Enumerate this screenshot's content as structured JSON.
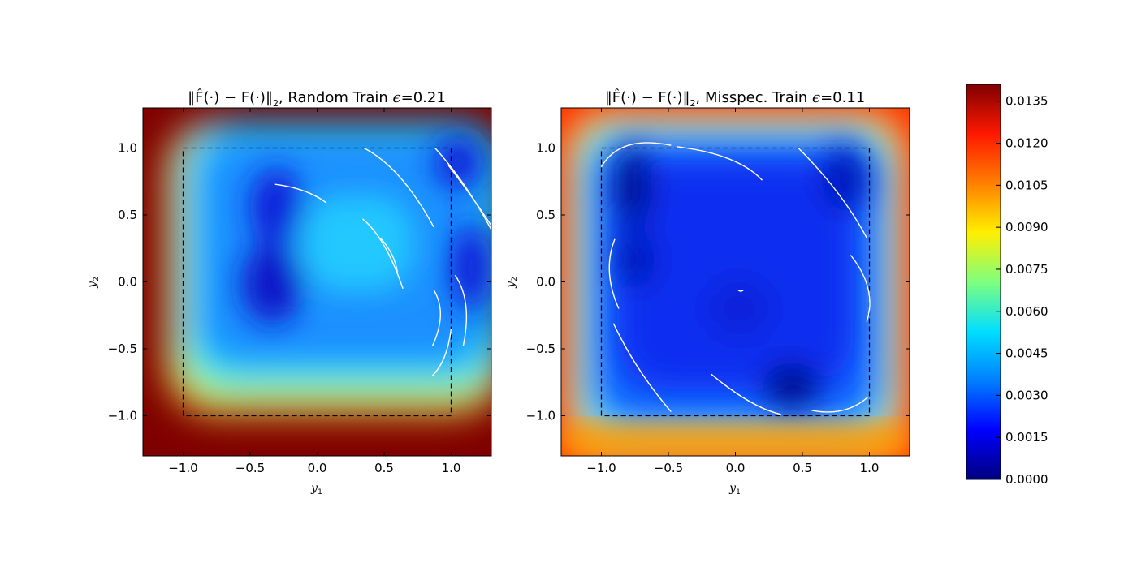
{
  "chart_data": [
    {
      "type": "heatmap",
      "title_prefix": "‖F̂(·) − F(·)‖",
      "title_sub": "2",
      "title_suffix": ", Random Train ",
      "title_eps": "ϵ",
      "title_value": "=0.21",
      "xlabel": "y",
      "xlabel_sub": "1",
      "ylabel": "y",
      "ylabel_sub": "2",
      "xlim": [
        -1.3,
        1.3
      ],
      "ylim": [
        -1.3,
        1.3
      ],
      "xticks": [
        "−1.0",
        "−0.5",
        "0.0",
        "0.5",
        "1.0"
      ],
      "yticks": [
        "1.0",
        "0.5",
        "0.0",
        "−0.5",
        "−1.0"
      ],
      "dashed_box": [
        -1.0,
        1.0,
        -1.0,
        1.0
      ],
      "minima": [
        [
          -0.32,
          0.65
        ],
        [
          -0.32,
          -0.05
        ],
        [
          0.95,
          0.88
        ],
        [
          1.05,
          0.05
        ]
      ],
      "saturation": {
        "left_edge_x": -1.0,
        "bottom_edge_y": -0.9
      },
      "trajectories": [
        [
          [
            -0.32,
            0.73
          ],
          [
            -0.1,
            0.68
          ],
          [
            0.07,
            0.59
          ]
        ],
        [
          [
            0.35,
            1.0
          ],
          [
            0.62,
            0.78
          ],
          [
            0.87,
            0.41
          ]
        ],
        [
          [
            0.88,
            1.0
          ],
          [
            1.1,
            0.72
          ],
          [
            1.3,
            0.39
          ]
        ],
        [
          [
            0.98,
            0.87
          ],
          [
            1.15,
            0.64
          ],
          [
            1.3,
            0.42
          ]
        ],
        [
          [
            0.34,
            0.47
          ],
          [
            0.5,
            0.27
          ],
          [
            0.64,
            -0.05
          ]
        ],
        [
          [
            0.47,
            0.33
          ],
          [
            0.56,
            0.2
          ],
          [
            0.6,
            0.06
          ]
        ],
        [
          [
            0.87,
            -0.06
          ],
          [
            0.92,
            -0.25
          ],
          [
            0.86,
            -0.48
          ]
        ],
        [
          [
            1.03,
            0.05
          ],
          [
            1.11,
            -0.18
          ],
          [
            1.09,
            -0.48
          ]
        ],
        [
          [
            1.0,
            -0.35
          ],
          [
            0.95,
            -0.56
          ],
          [
            0.86,
            -0.7
          ]
        ]
      ]
    },
    {
      "type": "heatmap",
      "title_prefix": "‖F̂(·) − F(·)‖",
      "title_sub": "2",
      "title_suffix": ", Misspec. Train ",
      "title_eps": "ϵ",
      "title_value": "=0.11",
      "xlabel": "y",
      "xlabel_sub": "1",
      "ylabel": "y",
      "ylabel_sub": "2",
      "xlim": [
        -1.3,
        1.3
      ],
      "ylim": [
        -1.3,
        1.3
      ],
      "xticks": [
        "−1.0",
        "−0.5",
        "0.0",
        "0.5",
        "1.0"
      ],
      "yticks": [
        "1.0",
        "0.5",
        "0.0",
        "−0.5",
        "−1.0"
      ],
      "dashed_box": [
        -1.0,
        1.0,
        -1.0,
        1.0
      ],
      "minima": [
        [
          -0.75,
          0.7
        ],
        [
          -0.78,
          0.2
        ],
        [
          0.45,
          -0.8
        ],
        [
          0.9,
          0.8
        ],
        [
          0.0,
          -0.2
        ]
      ],
      "saturation": {
        "left_edge_x": null,
        "bottom_edge_y": null
      },
      "trajectories": [
        [
          [
            -1.0,
            0.86
          ],
          [
            -0.8,
            1.02
          ],
          [
            -0.48,
            1.02
          ]
        ],
        [
          [
            -0.44,
            1.01
          ],
          [
            -0.05,
            0.92
          ],
          [
            0.2,
            0.76
          ]
        ],
        [
          [
            0.47,
            1.0
          ],
          [
            0.76,
            0.67
          ],
          [
            0.98,
            0.33
          ]
        ],
        [
          [
            -0.9,
            0.32
          ],
          [
            -0.94,
            0.07
          ],
          [
            -0.87,
            -0.2
          ]
        ],
        [
          [
            -0.91,
            -0.31
          ],
          [
            -0.72,
            -0.65
          ],
          [
            -0.48,
            -0.97
          ]
        ],
        [
          [
            -0.18,
            -0.69
          ],
          [
            0.1,
            -0.89
          ],
          [
            0.34,
            -0.99
          ]
        ],
        [
          [
            0.57,
            -0.96
          ],
          [
            0.8,
            -0.96
          ],
          [
            0.99,
            -0.86
          ]
        ],
        [
          [
            0.86,
            0.2
          ],
          [
            0.99,
            -0.05
          ],
          [
            0.98,
            -0.3
          ]
        ],
        [
          [
            0.02,
            -0.06
          ],
          [
            0.04,
            -0.07
          ],
          [
            0.06,
            -0.06
          ]
        ]
      ]
    }
  ],
  "colorbar": {
    "min": 0.0,
    "max": 0.0141,
    "ticks": [
      {
        "value": 0.0,
        "label": "0.0000"
      },
      {
        "value": 0.0015,
        "label": "0.0015"
      },
      {
        "value": 0.003,
        "label": "0.0030"
      },
      {
        "value": 0.0045,
        "label": "0.0045"
      },
      {
        "value": 0.006,
        "label": "0.0060"
      },
      {
        "value": 0.0075,
        "label": "0.0075"
      },
      {
        "value": 0.009,
        "label": "0.0090"
      },
      {
        "value": 0.0105,
        "label": "0.0105"
      },
      {
        "value": 0.012,
        "label": "0.0120"
      },
      {
        "value": 0.0135,
        "label": "0.0135"
      }
    ],
    "colors": [
      "#00007f",
      "#0000ff",
      "#007fff",
      "#00dfff",
      "#7fff7f",
      "#ffef00",
      "#ff7f00",
      "#ff1800",
      "#7f0000"
    ],
    "trajectory_color": "#ffffff"
  }
}
